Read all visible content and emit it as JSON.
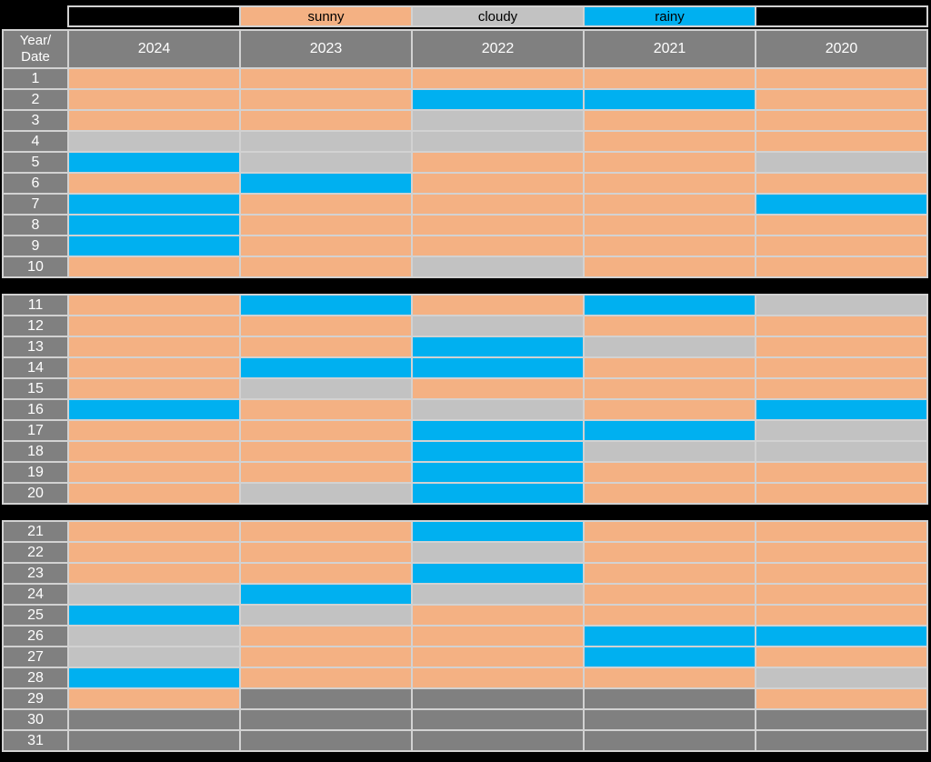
{
  "page": {
    "background": "#000000",
    "border_color": "#D2D2D2"
  },
  "legend": {
    "items": [
      {
        "label": "",
        "color": "#000000"
      },
      {
        "label": "sunny",
        "color": "#F4B183"
      },
      {
        "label": "cloudy",
        "color": "#C2C2C2"
      },
      {
        "label": "rainy",
        "color": "#00B0F0"
      },
      {
        "label": "",
        "color": "#000000"
      }
    ]
  },
  "header": {
    "corner": "Year/\nDate"
  },
  "chart_data": {
    "type": "heatmap",
    "columns": [
      "2024",
      "2023",
      "2022",
      "2021",
      "2020"
    ],
    "corner_label": "Year/Date",
    "legend_entries": [
      "sunny",
      "cloudy",
      "rainy"
    ],
    "colors": {
      "sunny": "#F4B183",
      "cloudy": "#C2C2C2",
      "rainy": "#00B0F0",
      "none": "#808080"
    },
    "row_groups": [
      [
        1,
        10
      ],
      [
        11,
        20
      ],
      [
        21,
        31
      ]
    ],
    "rows": [
      {
        "date": "1",
        "values": [
          "sunny",
          "sunny",
          "sunny",
          "sunny",
          "sunny"
        ]
      },
      {
        "date": "2",
        "values": [
          "sunny",
          "sunny",
          "rainy",
          "rainy",
          "sunny"
        ]
      },
      {
        "date": "3",
        "values": [
          "sunny",
          "sunny",
          "cloudy",
          "sunny",
          "sunny"
        ]
      },
      {
        "date": "4",
        "values": [
          "cloudy",
          "cloudy",
          "cloudy",
          "sunny",
          "sunny"
        ]
      },
      {
        "date": "5",
        "values": [
          "rainy",
          "cloudy",
          "sunny",
          "sunny",
          "cloudy"
        ]
      },
      {
        "date": "6",
        "values": [
          "sunny",
          "rainy",
          "sunny",
          "sunny",
          "sunny"
        ]
      },
      {
        "date": "7",
        "values": [
          "rainy",
          "sunny",
          "sunny",
          "sunny",
          "rainy"
        ]
      },
      {
        "date": "8",
        "values": [
          "rainy",
          "sunny",
          "sunny",
          "sunny",
          "sunny"
        ]
      },
      {
        "date": "9",
        "values": [
          "rainy",
          "sunny",
          "sunny",
          "sunny",
          "sunny"
        ]
      },
      {
        "date": "10",
        "values": [
          "sunny",
          "sunny",
          "cloudy",
          "sunny",
          "sunny"
        ]
      },
      {
        "date": "11",
        "values": [
          "sunny",
          "rainy",
          "sunny",
          "rainy",
          "cloudy"
        ]
      },
      {
        "date": "12",
        "values": [
          "sunny",
          "sunny",
          "cloudy",
          "sunny",
          "sunny"
        ]
      },
      {
        "date": "13",
        "values": [
          "sunny",
          "sunny",
          "rainy",
          "cloudy",
          "sunny"
        ]
      },
      {
        "date": "14",
        "values": [
          "sunny",
          "rainy",
          "rainy",
          "sunny",
          "sunny"
        ]
      },
      {
        "date": "15",
        "values": [
          "sunny",
          "cloudy",
          "sunny",
          "sunny",
          "sunny"
        ]
      },
      {
        "date": "16",
        "values": [
          "rainy",
          "sunny",
          "cloudy",
          "sunny",
          "rainy"
        ]
      },
      {
        "date": "17",
        "values": [
          "sunny",
          "sunny",
          "rainy",
          "rainy",
          "cloudy"
        ]
      },
      {
        "date": "18",
        "values": [
          "sunny",
          "sunny",
          "rainy",
          "cloudy",
          "cloudy"
        ]
      },
      {
        "date": "19",
        "values": [
          "sunny",
          "sunny",
          "rainy",
          "sunny",
          "sunny"
        ]
      },
      {
        "date": "20",
        "values": [
          "sunny",
          "cloudy",
          "rainy",
          "sunny",
          "sunny"
        ]
      },
      {
        "date": "21",
        "values": [
          "sunny",
          "sunny",
          "rainy",
          "sunny",
          "sunny"
        ]
      },
      {
        "date": "22",
        "values": [
          "sunny",
          "sunny",
          "cloudy",
          "sunny",
          "sunny"
        ]
      },
      {
        "date": "23",
        "values": [
          "sunny",
          "sunny",
          "rainy",
          "sunny",
          "sunny"
        ]
      },
      {
        "date": "24",
        "values": [
          "cloudy",
          "rainy",
          "cloudy",
          "sunny",
          "sunny"
        ]
      },
      {
        "date": "25",
        "values": [
          "rainy",
          "cloudy",
          "sunny",
          "sunny",
          "sunny"
        ]
      },
      {
        "date": "26",
        "values": [
          "cloudy",
          "sunny",
          "sunny",
          "rainy",
          "rainy"
        ]
      },
      {
        "date": "27",
        "values": [
          "cloudy",
          "sunny",
          "sunny",
          "rainy",
          "sunny"
        ]
      },
      {
        "date": "28",
        "values": [
          "rainy",
          "sunny",
          "sunny",
          "sunny",
          "cloudy"
        ]
      },
      {
        "date": "29",
        "values": [
          "sunny",
          "none",
          "none",
          "none",
          "sunny"
        ]
      },
      {
        "date": "30",
        "values": [
          "none",
          "none",
          "none",
          "none",
          "none"
        ]
      },
      {
        "date": "31",
        "values": [
          "none",
          "none",
          "none",
          "none",
          "none"
        ]
      }
    ]
  }
}
